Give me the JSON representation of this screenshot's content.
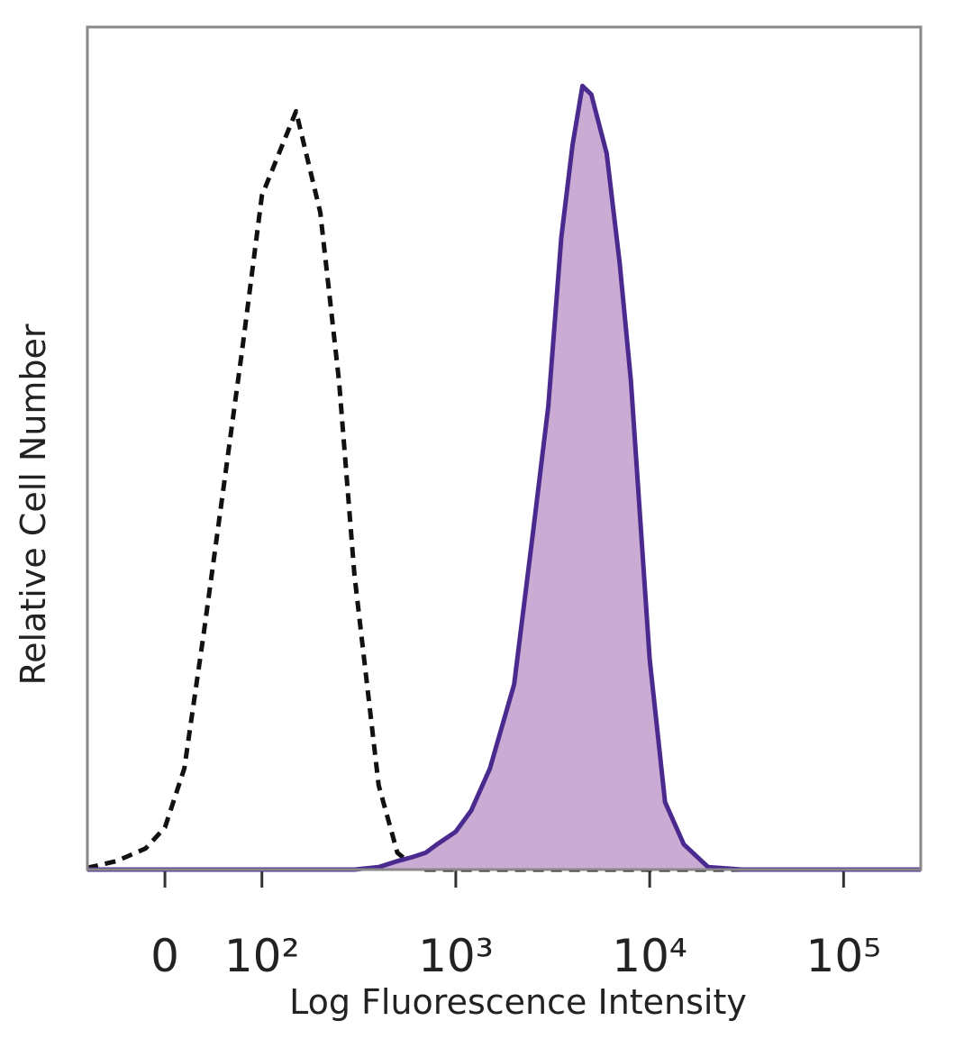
{
  "chart_data": {
    "type": "line",
    "xlabel": "Log Fluorescence Intensity",
    "ylabel": "Relative Cell Number",
    "xscale": "biexponential",
    "xlim": [
      -80,
      250000
    ],
    "ylim": [
      0,
      100
    ],
    "xticks": [
      0,
      {
        "value": 100,
        "label": "10²"
      },
      {
        "value": 1000,
        "label": "10³"
      },
      {
        "value": 10000,
        "label": "10⁴"
      },
      {
        "value": 100000,
        "label": "10⁵"
      }
    ],
    "x": [
      -80,
      -50,
      -20,
      0,
      20,
      40,
      60,
      80,
      100,
      150,
      200,
      250,
      300,
      400,
      500,
      600,
      700,
      800,
      1000,
      1200,
      1500,
      2000,
      2500,
      3000,
      3500,
      4000,
      4500,
      5000,
      6000,
      7000,
      8000,
      10000,
      12000,
      15000,
      20000,
      30000,
      100000,
      250000
    ],
    "series": [
      {
        "color": "#111111",
        "dashed": true,
        "fill": null,
        "values": [
          0.2,
          1,
          2.5,
          5,
          12,
          28,
          45,
          62,
          80,
          90,
          78,
          58,
          35,
          10,
          2,
          0.5,
          0,
          0,
          0,
          0,
          0,
          0,
          0,
          0,
          0,
          0,
          0,
          0,
          0,
          0,
          0,
          0,
          0,
          0,
          0,
          0,
          0,
          0
        ]
      },
      {
        "color": "#4b2a8f",
        "dashed": false,
        "fill": "#c9abd3",
        "values": [
          0,
          0,
          0,
          0,
          0,
          0,
          0,
          0,
          0,
          0,
          0,
          0,
          0,
          0.3,
          1,
          1.5,
          2,
          3,
          4.5,
          7,
          12,
          22,
          40,
          55,
          75,
          86,
          93,
          92,
          85,
          72,
          58,
          25,
          8,
          3,
          0.3,
          0,
          0,
          0
        ]
      }
    ]
  }
}
